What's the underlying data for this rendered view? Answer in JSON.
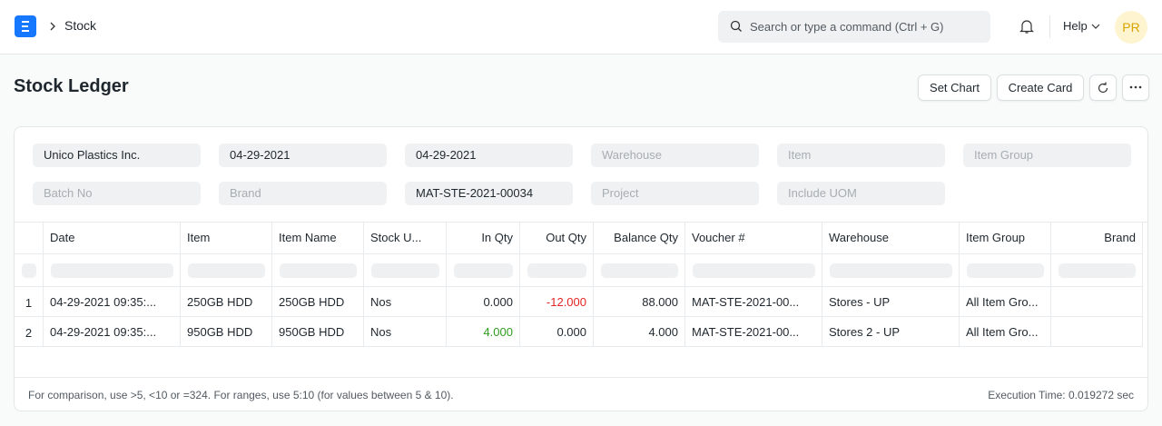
{
  "navbar": {
    "breadcrumb": "Stock",
    "search_placeholder": "Search or type a command (Ctrl + G)",
    "help": "Help",
    "avatar": "PR"
  },
  "page": {
    "title": "Stock Ledger",
    "buttons": [
      "Set Chart",
      "Create Card"
    ]
  },
  "filters": [
    {
      "value": "Unico Plastics Inc."
    },
    {
      "value": "04-29-2021"
    },
    {
      "value": "04-29-2021"
    },
    {
      "placeholder": "Warehouse"
    },
    {
      "placeholder": "Item"
    },
    {
      "placeholder": "Item Group"
    },
    {
      "placeholder": "Batch No"
    },
    {
      "placeholder": "Brand"
    },
    {
      "value": "MAT-STE-2021-00034"
    },
    {
      "placeholder": "Project"
    },
    {
      "placeholder": "Include UOM"
    }
  ],
  "table": {
    "columns": [
      {
        "label": "Date",
        "width": 151
      },
      {
        "label": "Item",
        "width": 101
      },
      {
        "label": "Item Name",
        "width": 101
      },
      {
        "label": "Stock U...",
        "width": 91
      },
      {
        "label": "In Qty",
        "width": 81,
        "align": "right",
        "color_sign": "positive"
      },
      {
        "label": "Out Qty",
        "width": 81,
        "align": "right",
        "color_sign": "negative"
      },
      {
        "label": "Balance Qty",
        "width": 101,
        "align": "right"
      },
      {
        "label": "Voucher #",
        "width": 151
      },
      {
        "label": "Warehouse",
        "width": 151
      },
      {
        "label": "Item Group",
        "width": 101
      },
      {
        "label": "Brand",
        "width": 101,
        "align": "right"
      }
    ],
    "row_numbers": [
      "1",
      "2"
    ],
    "rows": [
      [
        "04-29-2021 09:35:...",
        "250GB HDD",
        "250GB HDD",
        "Nos",
        "0.000",
        "-12.000",
        "88.000",
        "MAT-STE-2021-00...",
        "Stores - UP",
        "All Item Gro...",
        ""
      ],
      [
        "04-29-2021 09:35:...",
        "950GB HDD",
        "950GB HDD",
        "Nos",
        "4.000",
        "0.000",
        "4.000",
        "MAT-STE-2021-00...",
        "Stores 2 - UP",
        "All Item Gro...",
        ""
      ]
    ]
  },
  "footer": {
    "hint": "For comparison, use >5, <10 or =324. For ranges, use 5:10 (for values between 5 & 10).",
    "execution_time": "Execution Time: 0.019272 sec"
  }
}
